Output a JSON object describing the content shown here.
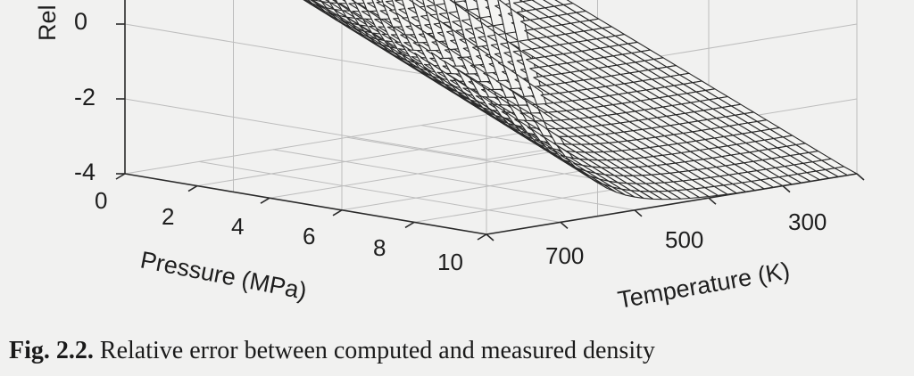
{
  "caption": {
    "label": "Fig. 2.2.",
    "text": "Relative error between computed and measured density"
  },
  "chart_data": {
    "type": "surface",
    "zlabel": "Rel",
    "z_ticks": [
      "0",
      "-2",
      "-4"
    ],
    "zlim": [
      -4,
      2
    ],
    "pressure_axis": {
      "label": "Pressure (MPa)",
      "ticks": [
        "0",
        "2",
        "4",
        "6",
        "8",
        "10"
      ],
      "range": [
        0,
        10
      ]
    },
    "temperature_axis": {
      "label": "Temperature (K)",
      "ticks": [
        "700",
        "500",
        "300"
      ],
      "range": [
        250,
        800
      ]
    },
    "grid": true,
    "line_color": "#2a2a2a",
    "grid_color": "#bdbdbd"
  }
}
